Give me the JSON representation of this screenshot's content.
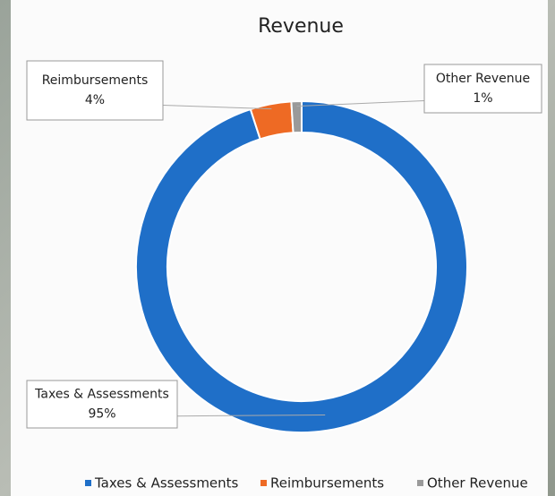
{
  "chart_data": {
    "type": "donut",
    "title": "Revenue",
    "categories": [
      "Taxes & Assessments",
      "Reimbursements",
      "Other Revenue"
    ],
    "values": [
      95,
      4,
      1
    ],
    "value_labels": [
      "95%",
      "4%",
      "1%"
    ],
    "colors": [
      "#1f6fc8",
      "#ee6a24",
      "#9a9a9a"
    ],
    "legend": "bottom"
  }
}
